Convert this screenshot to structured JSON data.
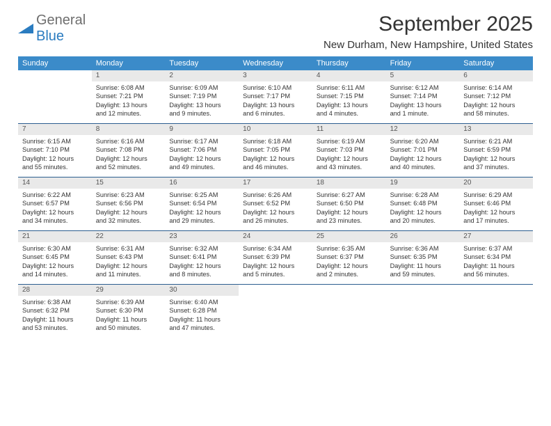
{
  "logo": {
    "word1": "General",
    "word2": "Blue"
  },
  "title": "September 2025",
  "location": "New Durham, New Hampshire, United States",
  "colors": {
    "header_bar": "#3b8bc9",
    "header_text": "#ffffff",
    "daynum_bg": "#e9e9e9",
    "week_divider": "#2b5d8f",
    "body_text": "#333333",
    "logo_gray": "#6e6e6e",
    "logo_blue": "#2b7cc0"
  },
  "day_names": [
    "Sunday",
    "Monday",
    "Tuesday",
    "Wednesday",
    "Thursday",
    "Friday",
    "Saturday"
  ],
  "weeks": [
    [
      null,
      {
        "num": "1",
        "sunrise": "Sunrise: 6:08 AM",
        "sunset": "Sunset: 7:21 PM",
        "day1": "Daylight: 13 hours",
        "day2": "and 12 minutes."
      },
      {
        "num": "2",
        "sunrise": "Sunrise: 6:09 AM",
        "sunset": "Sunset: 7:19 PM",
        "day1": "Daylight: 13 hours",
        "day2": "and 9 minutes."
      },
      {
        "num": "3",
        "sunrise": "Sunrise: 6:10 AM",
        "sunset": "Sunset: 7:17 PM",
        "day1": "Daylight: 13 hours",
        "day2": "and 6 minutes."
      },
      {
        "num": "4",
        "sunrise": "Sunrise: 6:11 AM",
        "sunset": "Sunset: 7:15 PM",
        "day1": "Daylight: 13 hours",
        "day2": "and 4 minutes."
      },
      {
        "num": "5",
        "sunrise": "Sunrise: 6:12 AM",
        "sunset": "Sunset: 7:14 PM",
        "day1": "Daylight: 13 hours",
        "day2": "and 1 minute."
      },
      {
        "num": "6",
        "sunrise": "Sunrise: 6:14 AM",
        "sunset": "Sunset: 7:12 PM",
        "day1": "Daylight: 12 hours",
        "day2": "and 58 minutes."
      }
    ],
    [
      {
        "num": "7",
        "sunrise": "Sunrise: 6:15 AM",
        "sunset": "Sunset: 7:10 PM",
        "day1": "Daylight: 12 hours",
        "day2": "and 55 minutes."
      },
      {
        "num": "8",
        "sunrise": "Sunrise: 6:16 AM",
        "sunset": "Sunset: 7:08 PM",
        "day1": "Daylight: 12 hours",
        "day2": "and 52 minutes."
      },
      {
        "num": "9",
        "sunrise": "Sunrise: 6:17 AM",
        "sunset": "Sunset: 7:06 PM",
        "day1": "Daylight: 12 hours",
        "day2": "and 49 minutes."
      },
      {
        "num": "10",
        "sunrise": "Sunrise: 6:18 AM",
        "sunset": "Sunset: 7:05 PM",
        "day1": "Daylight: 12 hours",
        "day2": "and 46 minutes."
      },
      {
        "num": "11",
        "sunrise": "Sunrise: 6:19 AM",
        "sunset": "Sunset: 7:03 PM",
        "day1": "Daylight: 12 hours",
        "day2": "and 43 minutes."
      },
      {
        "num": "12",
        "sunrise": "Sunrise: 6:20 AM",
        "sunset": "Sunset: 7:01 PM",
        "day1": "Daylight: 12 hours",
        "day2": "and 40 minutes."
      },
      {
        "num": "13",
        "sunrise": "Sunrise: 6:21 AM",
        "sunset": "Sunset: 6:59 PM",
        "day1": "Daylight: 12 hours",
        "day2": "and 37 minutes."
      }
    ],
    [
      {
        "num": "14",
        "sunrise": "Sunrise: 6:22 AM",
        "sunset": "Sunset: 6:57 PM",
        "day1": "Daylight: 12 hours",
        "day2": "and 34 minutes."
      },
      {
        "num": "15",
        "sunrise": "Sunrise: 6:23 AM",
        "sunset": "Sunset: 6:56 PM",
        "day1": "Daylight: 12 hours",
        "day2": "and 32 minutes."
      },
      {
        "num": "16",
        "sunrise": "Sunrise: 6:25 AM",
        "sunset": "Sunset: 6:54 PM",
        "day1": "Daylight: 12 hours",
        "day2": "and 29 minutes."
      },
      {
        "num": "17",
        "sunrise": "Sunrise: 6:26 AM",
        "sunset": "Sunset: 6:52 PM",
        "day1": "Daylight: 12 hours",
        "day2": "and 26 minutes."
      },
      {
        "num": "18",
        "sunrise": "Sunrise: 6:27 AM",
        "sunset": "Sunset: 6:50 PM",
        "day1": "Daylight: 12 hours",
        "day2": "and 23 minutes."
      },
      {
        "num": "19",
        "sunrise": "Sunrise: 6:28 AM",
        "sunset": "Sunset: 6:48 PM",
        "day1": "Daylight: 12 hours",
        "day2": "and 20 minutes."
      },
      {
        "num": "20",
        "sunrise": "Sunrise: 6:29 AM",
        "sunset": "Sunset: 6:46 PM",
        "day1": "Daylight: 12 hours",
        "day2": "and 17 minutes."
      }
    ],
    [
      {
        "num": "21",
        "sunrise": "Sunrise: 6:30 AM",
        "sunset": "Sunset: 6:45 PM",
        "day1": "Daylight: 12 hours",
        "day2": "and 14 minutes."
      },
      {
        "num": "22",
        "sunrise": "Sunrise: 6:31 AM",
        "sunset": "Sunset: 6:43 PM",
        "day1": "Daylight: 12 hours",
        "day2": "and 11 minutes."
      },
      {
        "num": "23",
        "sunrise": "Sunrise: 6:32 AM",
        "sunset": "Sunset: 6:41 PM",
        "day1": "Daylight: 12 hours",
        "day2": "and 8 minutes."
      },
      {
        "num": "24",
        "sunrise": "Sunrise: 6:34 AM",
        "sunset": "Sunset: 6:39 PM",
        "day1": "Daylight: 12 hours",
        "day2": "and 5 minutes."
      },
      {
        "num": "25",
        "sunrise": "Sunrise: 6:35 AM",
        "sunset": "Sunset: 6:37 PM",
        "day1": "Daylight: 12 hours",
        "day2": "and 2 minutes."
      },
      {
        "num": "26",
        "sunrise": "Sunrise: 6:36 AM",
        "sunset": "Sunset: 6:35 PM",
        "day1": "Daylight: 11 hours",
        "day2": "and 59 minutes."
      },
      {
        "num": "27",
        "sunrise": "Sunrise: 6:37 AM",
        "sunset": "Sunset: 6:34 PM",
        "day1": "Daylight: 11 hours",
        "day2": "and 56 minutes."
      }
    ],
    [
      {
        "num": "28",
        "sunrise": "Sunrise: 6:38 AM",
        "sunset": "Sunset: 6:32 PM",
        "day1": "Daylight: 11 hours",
        "day2": "and 53 minutes."
      },
      {
        "num": "29",
        "sunrise": "Sunrise: 6:39 AM",
        "sunset": "Sunset: 6:30 PM",
        "day1": "Daylight: 11 hours",
        "day2": "and 50 minutes."
      },
      {
        "num": "30",
        "sunrise": "Sunrise: 6:40 AM",
        "sunset": "Sunset: 6:28 PM",
        "day1": "Daylight: 11 hours",
        "day2": "and 47 minutes."
      },
      null,
      null,
      null,
      null
    ]
  ]
}
